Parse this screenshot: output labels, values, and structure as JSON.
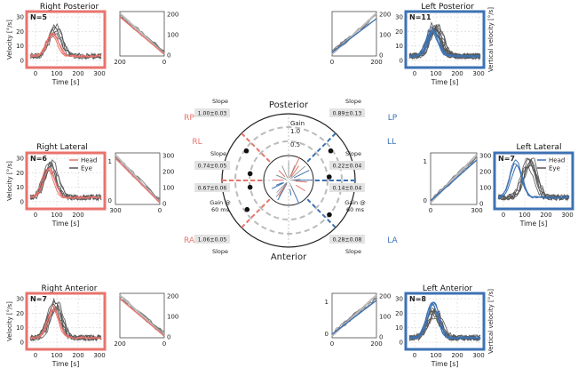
{
  "panels": [
    {
      "id": "RP",
      "title": "Right Posterior",
      "n": "N=5",
      "frame": "#e8736c",
      "side": "left",
      "ylabel": "Velocity [°/s]",
      "xlabel": "Time [s]",
      "xticks": [
        "0",
        "100",
        "200",
        "300"
      ],
      "yticks": [
        "0",
        "10",
        "20",
        "30"
      ],
      "tick_u": [
        0,
        100,
        200,
        300
      ],
      "tick_v": [
        0,
        10,
        20,
        30
      ],
      "head_peak": 17,
      "head_at": 85,
      "eye_peak": 20,
      "eye_at": 95,
      "n_eye": 5,
      "legend": [],
      "slope_xticks": [
        "200",
        "0"
      ],
      "slope_yticks": [
        "0",
        "100",
        "200"
      ],
      "slope_sign": -1,
      "slope_dir": "down"
    },
    {
      "id": "LP",
      "title": "Left Posterior",
      "n": "N=11",
      "frame": "#3d72b3",
      "side": "right",
      "ylabel": "Vertical velocity [°/s]",
      "xlabel": "Time [s]",
      "xticks": [
        "0",
        "100",
        "200",
        "300"
      ],
      "yticks": [
        "0",
        "10",
        "20",
        "30"
      ],
      "tick_u": [
        0,
        100,
        200,
        300
      ],
      "tick_v": [
        0,
        10,
        20,
        30
      ],
      "head_peak": 20,
      "head_at": 90,
      "eye_peak": 21,
      "eye_at": 100,
      "n_eye": 11,
      "legend": [],
      "slope_xticks": [
        "0",
        "200"
      ],
      "slope_yticks": [
        "0",
        "100",
        "200"
      ],
      "slope_sign": 1,
      "slope_dir": "up"
    },
    {
      "id": "RL",
      "title": "Right Lateral",
      "n": "N=6",
      "frame": "#e8736c",
      "side": "left",
      "ylabel": "Velocity [°/s]",
      "xlabel": "Time [s]",
      "xticks": [
        "0",
        "100",
        "200"
      ],
      "yticks": [
        "0",
        "10",
        "20",
        "30"
      ],
      "tick_u": [
        0,
        100,
        200
      ],
      "tick_v": [
        0,
        10,
        20,
        30
      ],
      "head_peak": 20,
      "head_at": 60,
      "eye_peak": 22,
      "eye_at": 70,
      "n_eye": 6,
      "legend": [
        "Head",
        "Eye"
      ],
      "slope_xticks": [
        "300",
        "0"
      ],
      "slope_yticks": [
        "0",
        "100",
        "200",
        "300"
      ],
      "slope_sign": -1,
      "slope_dir": "down",
      "slope_ylabels": [
        "0",
        "1"
      ]
    },
    {
      "id": "LL",
      "title": "Left Lateral",
      "n": "N=7",
      "frame": "#3d72b3",
      "side": "right",
      "ylabel": "",
      "xlabel": "Time [s]",
      "xticks": [
        "0",
        "100",
        "200",
        "300"
      ],
      "yticks": [],
      "tick_u": [
        0,
        100,
        200,
        300
      ],
      "tick_v": [],
      "head_peak": 26,
      "head_at": 60,
      "eye_peak": 24,
      "eye_at": 130,
      "n_eye": 7,
      "legend": [
        "Head",
        "Eye"
      ],
      "slope_xticks": [
        "0",
        "300",
        "0",
        "100",
        "200",
        "300"
      ],
      "slope_yticks": [
        "0",
        "100",
        "200",
        "300"
      ],
      "slope_sign": 1,
      "slope_dir": "up",
      "slope_ylabels": [
        "0",
        "1"
      ]
    },
    {
      "id": "RA",
      "title": "Right Anterior",
      "n": "N=7",
      "frame": "#e8736c",
      "side": "left",
      "ylabel": "Velocity [°/s]",
      "xlabel": "Time [s]",
      "xticks": [
        "0",
        "100",
        "200",
        "300"
      ],
      "yticks": [
        "0",
        "10",
        "20",
        "30"
      ],
      "tick_u": [
        0,
        100,
        200,
        300
      ],
      "tick_v": [
        0,
        10,
        20,
        30
      ],
      "head_peak": 21,
      "head_at": 90,
      "eye_peak": 23,
      "eye_at": 95,
      "n_eye": 7,
      "legend": [],
      "slope_xticks": [
        "200",
        "0"
      ],
      "slope_yticks": [
        "0",
        "100",
        "200"
      ],
      "slope_sign": -1,
      "slope_dir": "down"
    },
    {
      "id": "LA",
      "title": "Left Anterior",
      "n": "N=8",
      "frame": "#3d72b3",
      "side": "right",
      "ylabel": "Vertical velocity [°/s]",
      "xlabel": "Time [s]",
      "xticks": [
        "0",
        "100",
        "200",
        "300"
      ],
      "yticks": [
        "0",
        "10",
        "20",
        "30"
      ],
      "tick_u": [
        0,
        100,
        200,
        300
      ],
      "tick_v": [
        0,
        10,
        20,
        30
      ],
      "head_peak": 25,
      "head_at": 90,
      "eye_peak": 18,
      "eye_at": 100,
      "n_eye": 8,
      "legend": [],
      "slope_xticks": [
        "0",
        "200"
      ],
      "slope_yticks": [
        "0",
        "100",
        "200"
      ],
      "slope_sign": 1,
      "slope_dir": "up",
      "slope_ylabels": [
        "0",
        "1"
      ]
    }
  ],
  "polar": {
    "top_label": "Posterior",
    "bottom_label": "Anterior",
    "gain_label": "Gain",
    "gain_ticks": [
      "1.0",
      "0.5"
    ],
    "canal_labels": [
      {
        "id": "RP",
        "text": "RP",
        "color": "#e8736c"
      },
      {
        "id": "LP",
        "text": "LP",
        "color": "#3d72b3"
      },
      {
        "id": "RL",
        "text": "RL",
        "color": "#e8736c"
      },
      {
        "id": "LL",
        "text": "LL",
        "color": "#3d72b3"
      },
      {
        "id": "RA",
        "text": "RA",
        "color": "#e8736c"
      },
      {
        "id": "LA",
        "text": "LA",
        "color": "#3d72b3"
      }
    ],
    "slope_boxes": [
      {
        "id": "RP",
        "value": "1.00±0.03",
        "label": "Slope"
      },
      {
        "id": "LP",
        "value": "0.89±0.13",
        "label": "Slope"
      },
      {
        "id": "RL",
        "value": "0.74±0.05",
        "label": "Slope"
      },
      {
        "id": "RLg",
        "value": "0.67±0.06",
        "label": "Gain @ 60 ms"
      },
      {
        "id": "LL",
        "value": "0.22±0.04",
        "label": "Slope"
      },
      {
        "id": "LLg",
        "value": "0.14±0.04",
        "label": "Gain @ 60 ms"
      },
      {
        "id": "RA",
        "value": "1.06±0.05",
        "label": "Slope"
      },
      {
        "id": "LA",
        "value": "0.28±0.08",
        "label": "Slope"
      }
    ]
  },
  "colors": {
    "right": "#e8736c",
    "left": "#3d72b3",
    "eye": "#555555",
    "grey": "#bbbbbb"
  },
  "chart_data": {
    "type": "line",
    "series": [
      {
        "name": "Head",
        "values": []
      },
      {
        "name": "Eye",
        "values": []
      }
    ],
    "slopes": {
      "RP": "1.00±0.03",
      "LP": "0.89±0.13",
      "RL": "0.74±0.05",
      "LL": "0.22±0.04",
      "RA": "1.06±0.05",
      "LA": "0.28±0.08"
    },
    "gain_at_60ms": {
      "RL": "0.67±0.06",
      "LL": "0.14±0.04"
    }
  }
}
